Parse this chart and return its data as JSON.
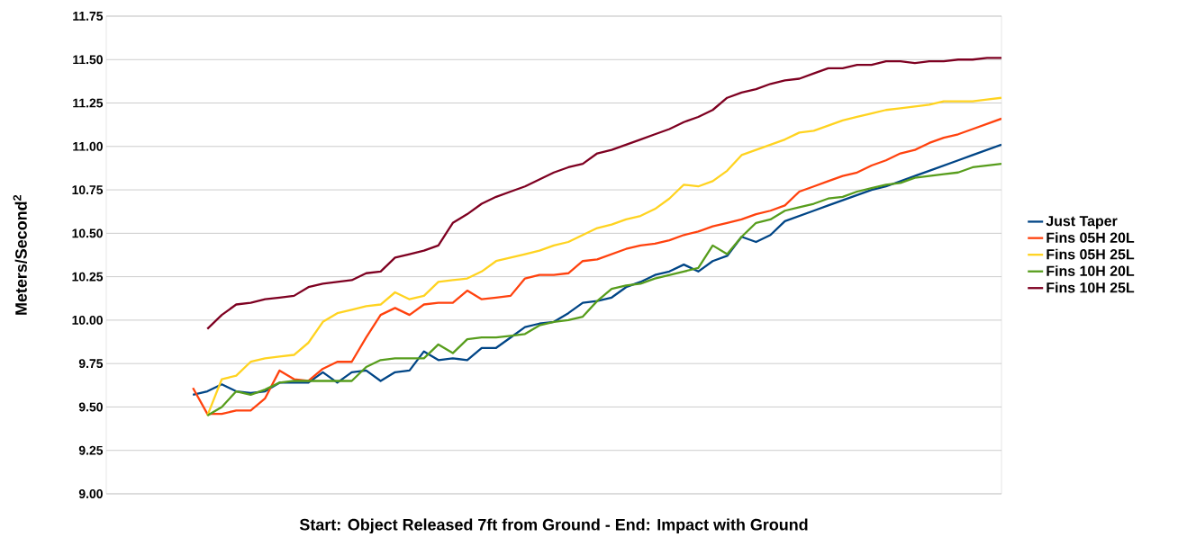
{
  "chart_data": {
    "type": "line",
    "xlabel": "Start: Object Released 7ft from Ground - End: Impact with Ground",
    "ylabel": "Meters/Second$^{2}$",
    "categories": [
      null,
      null,
      null,
      null,
      null,
      null,
      null,
      null,
      null,
      null,
      null,
      null,
      null,
      null,
      null,
      null,
      null,
      null,
      null,
      null,
      null,
      null,
      null,
      null,
      null,
      null,
      null,
      null,
      null,
      null,
      null,
      null,
      null,
      null,
      null,
      null,
      null,
      null,
      null,
      null,
      null,
      null,
      null,
      null,
      null,
      null,
      null,
      null,
      null,
      null,
      null,
      null,
      null,
      null,
      null,
      null,
      null,
      null,
      null,
      null,
      null,
      null,
      null
    ],
    "series": [
      {
        "name": "Just Taper",
        "color": "#004586",
        "values": [
          null,
          null,
          null,
          null,
          null,
          null,
          9.57,
          9.59,
          9.63,
          9.59,
          9.58,
          9.59,
          9.64,
          9.64,
          9.64,
          9.7,
          9.64,
          9.7,
          9.71,
          9.65,
          9.7,
          9.71,
          9.82,
          9.77,
          9.78,
          9.77,
          9.84,
          9.84,
          9.9,
          9.96,
          9.98,
          9.99,
          10.04,
          10.1,
          10.11,
          10.13,
          10.19,
          10.22,
          10.26,
          10.28,
          10.32,
          10.28,
          10.34,
          10.37,
          10.48,
          10.45,
          10.49,
          10.57,
          10.6,
          10.63,
          10.66,
          10.69,
          10.72,
          10.75,
          10.77,
          10.8,
          10.83,
          10.86,
          10.89,
          10.92,
          10.95,
          10.98,
          11.01
        ]
      },
      {
        "name": "Fins 05H 20L",
        "color": "#ff420e",
        "values": [
          null,
          null,
          null,
          null,
          null,
          null,
          9.61,
          9.46,
          9.46,
          9.48,
          9.48,
          9.55,
          9.71,
          9.66,
          9.65,
          9.72,
          9.76,
          9.76,
          9.9,
          10.03,
          10.07,
          10.03,
          10.09,
          10.1,
          10.1,
          10.17,
          10.12,
          10.13,
          10.14,
          10.24,
          10.26,
          10.26,
          10.27,
          10.34,
          10.35,
          10.38,
          10.41,
          10.43,
          10.44,
          10.46,
          10.49,
          10.51,
          10.54,
          10.56,
          10.58,
          10.61,
          10.63,
          10.66,
          10.74,
          10.77,
          10.8,
          10.83,
          10.85,
          10.89,
          10.92,
          10.96,
          10.98,
          11.02,
          11.05,
          11.07,
          11.1,
          11.13,
          11.16
        ]
      },
      {
        "name": "Fins 05H 25L",
        "color": "#ffd320",
        "values": [
          null,
          null,
          null,
          null,
          null,
          null,
          null,
          9.45,
          9.66,
          9.68,
          9.76,
          9.78,
          9.79,
          9.8,
          9.87,
          9.99,
          10.04,
          10.06,
          10.08,
          10.09,
          10.16,
          10.12,
          10.14,
          10.22,
          10.23,
          10.24,
          10.28,
          10.34,
          10.36,
          10.38,
          10.4,
          10.43,
          10.45,
          10.49,
          10.53,
          10.55,
          10.58,
          10.6,
          10.64,
          10.7,
          10.78,
          10.77,
          10.8,
          10.86,
          10.95,
          10.98,
          11.01,
          11.04,
          11.08,
          11.09,
          11.12,
          11.15,
          11.17,
          11.19,
          11.21,
          11.22,
          11.23,
          11.24,
          11.26,
          11.26,
          11.26,
          11.27,
          11.28
        ]
      },
      {
        "name": "Fins 10H 20L",
        "color": "#579d1c",
        "values": [
          null,
          null,
          null,
          null,
          null,
          null,
          null,
          9.45,
          9.5,
          9.59,
          9.57,
          9.6,
          9.64,
          9.65,
          9.65,
          9.65,
          9.65,
          9.65,
          9.73,
          9.77,
          9.78,
          9.78,
          9.78,
          9.86,
          9.81,
          9.89,
          9.9,
          9.9,
          9.91,
          9.92,
          9.97,
          9.99,
          10.0,
          10.02,
          10.11,
          10.18,
          10.2,
          10.21,
          10.24,
          10.26,
          10.28,
          10.3,
          10.43,
          10.38,
          10.48,
          10.56,
          10.58,
          10.63,
          10.65,
          10.67,
          10.7,
          10.71,
          10.74,
          10.76,
          10.78,
          10.79,
          10.82,
          10.83,
          10.84,
          10.85,
          10.88,
          10.89,
          10.9
        ]
      },
      {
        "name": "Fins 10H 25L",
        "color": "#7e0021",
        "values": [
          null,
          null,
          null,
          null,
          null,
          null,
          null,
          9.95,
          10.03,
          10.09,
          10.1,
          10.12,
          10.13,
          10.14,
          10.19,
          10.21,
          10.22,
          10.23,
          10.27,
          10.28,
          10.36,
          10.38,
          10.4,
          10.43,
          10.56,
          10.61,
          10.67,
          10.71,
          10.74,
          10.77,
          10.81,
          10.85,
          10.88,
          10.9,
          10.96,
          10.98,
          11.01,
          11.04,
          11.07,
          11.1,
          11.14,
          11.17,
          11.21,
          11.28,
          11.31,
          11.33,
          11.36,
          11.38,
          11.39,
          11.42,
          11.45,
          11.45,
          11.47,
          11.47,
          11.49,
          11.49,
          11.48,
          11.49,
          11.49,
          11.5,
          11.5,
          11.51,
          11.51
        ]
      }
    ],
    "ylim": [
      9,
      11.75
    ],
    "yticks": [
      {
        "value": 9,
        "label": "9.00"
      },
      {
        "value": 9.25,
        "label": "9.25"
      },
      {
        "value": 9.5,
        "label": "9.50"
      },
      {
        "value": 9.75,
        "label": "9.75"
      },
      {
        "value": 10,
        "label": "10.00"
      },
      {
        "value": 10.25,
        "label": "10.25"
      },
      {
        "value": 10.5,
        "label": "10.50"
      },
      {
        "value": 10.75,
        "label": "10.75"
      },
      {
        "value": 11,
        "label": "11.00"
      },
      {
        "value": 11.25,
        "label": "11.25"
      },
      {
        "value": 11.5,
        "label": "11.50"
      },
      {
        "value": 11.75,
        "label": "11.75"
      }
    ],
    "grid": "y",
    "legend": "right",
    "tick_labels": "y",
    "marker": "none",
    "line_style": "solid"
  }
}
